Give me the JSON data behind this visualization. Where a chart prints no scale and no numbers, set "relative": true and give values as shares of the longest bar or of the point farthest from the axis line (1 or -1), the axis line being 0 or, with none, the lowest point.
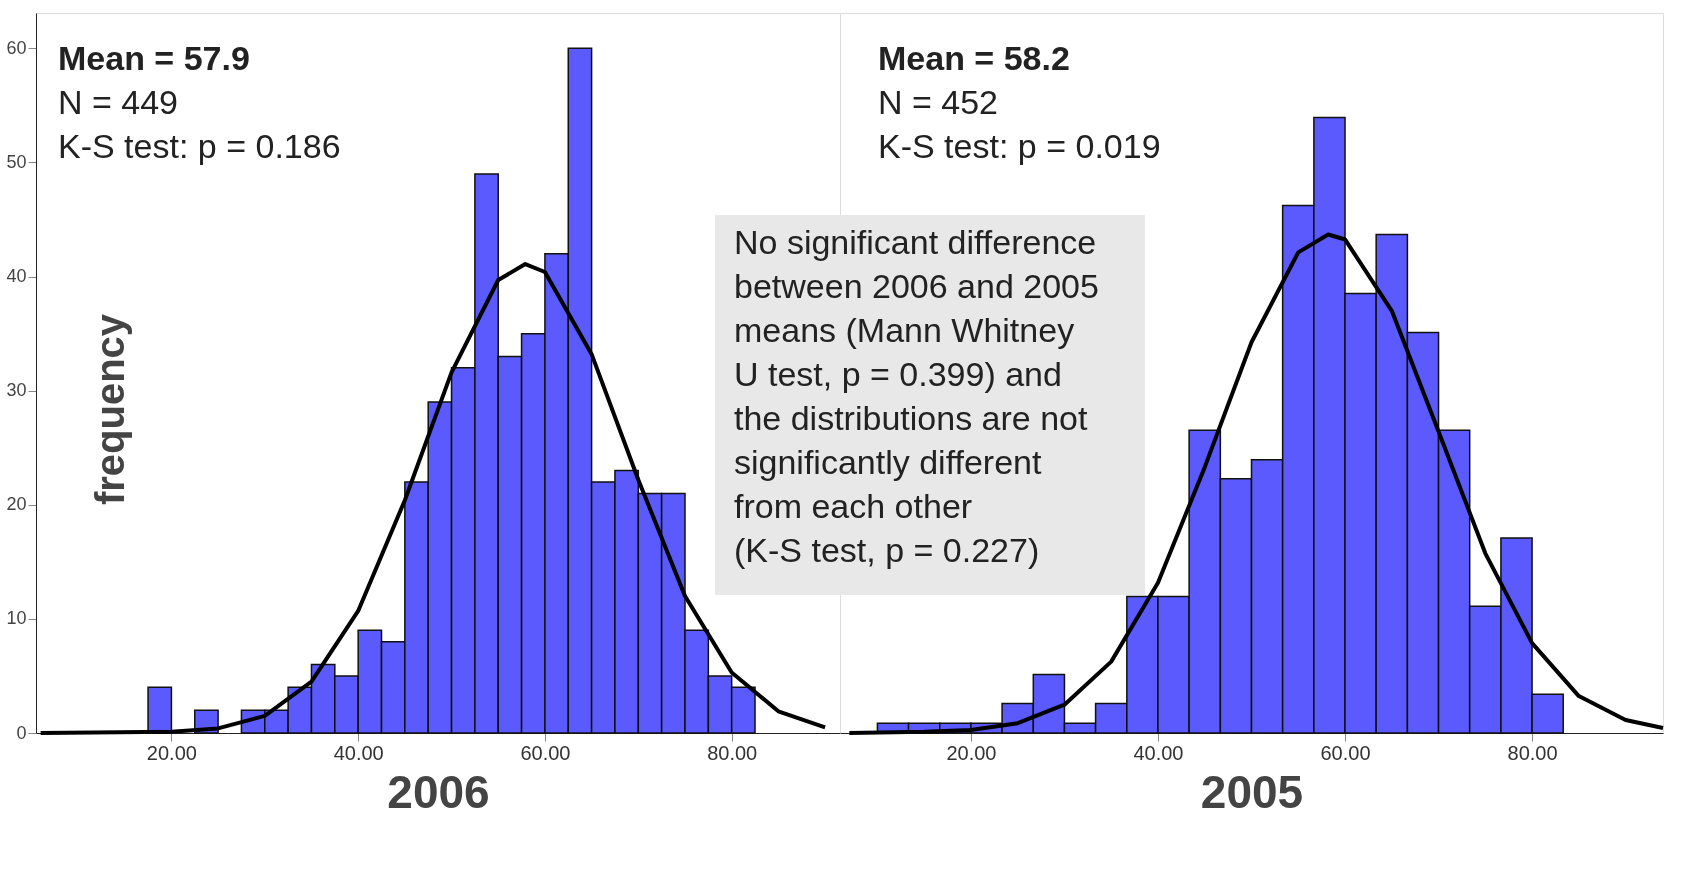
{
  "chart_data": [
    {
      "type": "histogram",
      "xlabel": "2006",
      "ylabel": "frequency",
      "bins": [
        17.5,
        20,
        22.5,
        25,
        27.5,
        30,
        32.5,
        35,
        37.5,
        40,
        42.5,
        45,
        47.5,
        50,
        52.5,
        55,
        57.5,
        60,
        62.5,
        65,
        67.5,
        70,
        72.5,
        75,
        77.5,
        80,
        82.5
      ],
      "values": [
        4,
        0,
        2,
        0,
        2,
        2,
        4,
        6,
        5,
        9,
        8,
        22,
        29,
        32,
        49,
        33,
        35,
        42,
        60,
        22,
        23,
        21,
        21,
        9,
        5,
        4
      ],
      "color": "#5a5aff",
      "series": [
        {
          "type": "line",
          "color": "#000000",
          "x": [
            6,
            20,
            25,
            30,
            35,
            40,
            45,
            50,
            55,
            57.9,
            60,
            65,
            70,
            75,
            80,
            85,
            90
          ],
          "values": [
            0,
            0.1,
            0.4,
            1.5,
            4.5,
            10.7,
            20.4,
            31.6,
            39.7,
            41.1,
            40.4,
            33.2,
            22.2,
            12.0,
            5.3,
            1.9,
            0.5
          ]
        }
      ],
      "xlim": [
        5.5,
        91.6
      ],
      "ylim": [
        0,
        63.1
      ],
      "xticks": [
        {
          "value": 20,
          "label": "20.00"
        },
        {
          "value": 40,
          "label": "40.00"
        },
        {
          "value": 60,
          "label": "60.00"
        },
        {
          "value": 80,
          "label": "80.00"
        }
      ],
      "yticks": [
        0,
        10,
        20,
        30,
        40,
        50,
        60
      ],
      "annotations": [
        "Mean = 57.9",
        "N = 449",
        "K-S test: p = 0.186"
      ],
      "grid": false
    },
    {
      "type": "histogram",
      "xlabel": "2005",
      "bins": [
        10,
        13.33,
        16.67,
        20,
        23.33,
        26.67,
        30,
        33.33,
        36.67,
        40,
        43.33,
        46.67,
        50,
        53.33,
        56.67,
        60,
        63.33,
        66.67,
        70,
        73.33,
        76.67,
        80,
        83.33
      ],
      "relative": true,
      "values": [
        0.016,
        0.016,
        0.016,
        0.016,
        0.048,
        0.095,
        0.016,
        0.048,
        0.222,
        0.222,
        0.492,
        0.413,
        0.444,
        0.857,
        1,
        0.714,
        0.81,
        0.651,
        0.492,
        0.206,
        0.317,
        0.063
      ],
      "color": "#5a5aff",
      "series": [
        {
          "type": "line",
          "color": "#000000",
          "x": [
            7,
            15,
            20,
            25,
            30,
            35,
            40,
            45,
            50,
            55,
            58.2,
            60,
            65,
            70,
            75,
            80,
            85,
            90,
            94
          ],
          "values": [
            0,
            0.002,
            0.005,
            0.016,
            0.046,
            0.116,
            0.244,
            0.432,
            0.635,
            0.781,
            0.81,
            0.802,
            0.686,
            0.49,
            0.292,
            0.146,
            0.06,
            0.021,
            0.008
          ]
        }
      ],
      "xlim": [
        6,
        94
      ],
      "xticks": [
        {
          "value": 20,
          "label": "20.00"
        },
        {
          "value": 40,
          "label": "40.00"
        },
        {
          "value": 60,
          "label": "60.00"
        },
        {
          "value": 80,
          "label": "80.00"
        }
      ],
      "tick_labels": "x",
      "annotations": [
        "Mean = 58.2",
        "N = 452",
        "K-S test: p = 0.019",
        "No significant difference\nbetween 2006 and 2005\nmeans  (Mann Whitney\nU test, p = 0.399) and\nthe distributions are not\nsignificantly different\nfrom each other\n(K-S test, p = 0.227)"
      ],
      "grid": false
    }
  ]
}
